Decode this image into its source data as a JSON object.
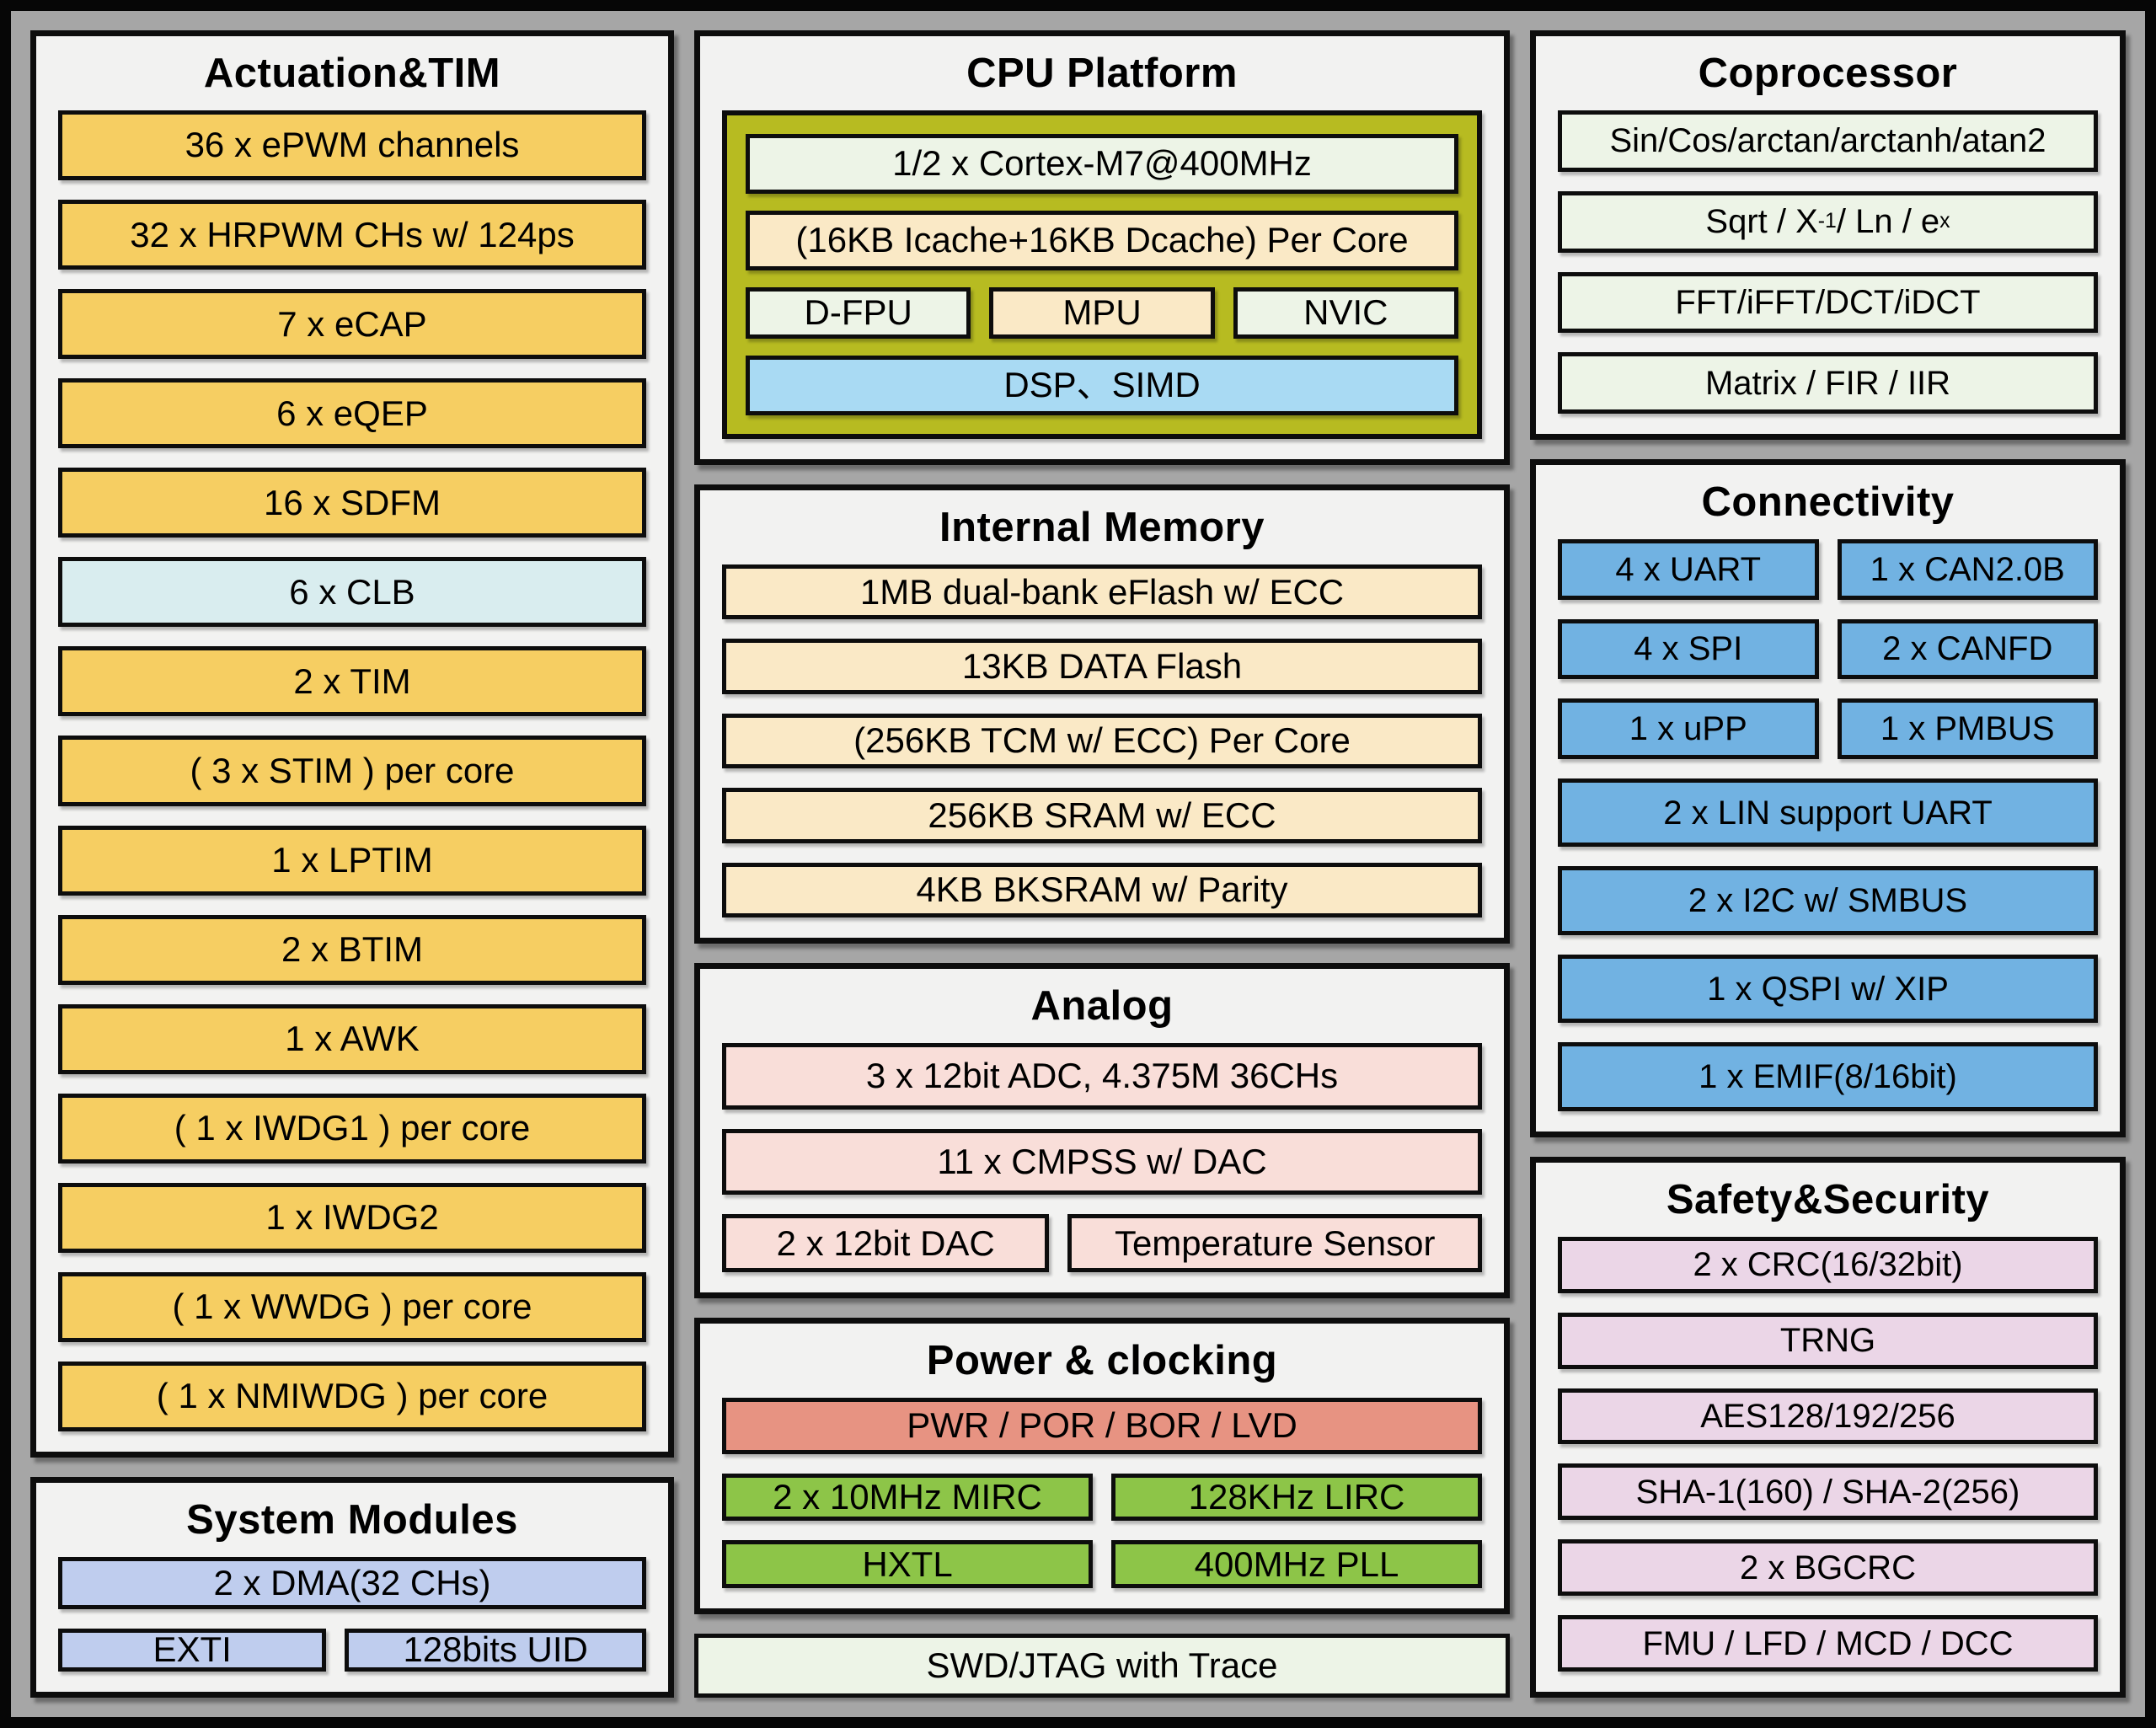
{
  "colors": {
    "yellow": "#f6ce62",
    "cyan": "#d9edef",
    "periwinkle": "#bfcdee",
    "olive": "#b7bb21",
    "paleGreen": "#edf4e7",
    "cream": "#fae9c6",
    "sky": "#a9daf3",
    "pink": "#f9ded9",
    "salmon": "#e79382",
    "green": "#8dc548",
    "blue": "#71b2e2",
    "lavender": "#ebd6e7",
    "panel_bg": "#f2f2f1",
    "canvas_bg": "#a6a6a6",
    "border": "#0d0d0d"
  },
  "left": {
    "actuation": {
      "title": "Actuation&TIM",
      "blocks": [
        {
          "label": "36 x ePWM channels",
          "color": "yellow"
        },
        {
          "label": "32 x HRPWM CHs w/ 124ps",
          "color": "yellow"
        },
        {
          "label": "7 x eCAP",
          "color": "yellow"
        },
        {
          "label": "6 x eQEP",
          "color": "yellow"
        },
        {
          "label": "16 x SDFM",
          "color": "yellow"
        },
        {
          "label": "6 x CLB",
          "color": "cyan"
        },
        {
          "label": "2 x TIM",
          "color": "yellow"
        },
        {
          "label": "( 3 x STIM ) per core",
          "color": "yellow"
        },
        {
          "label": "1 x LPTIM",
          "color": "yellow"
        },
        {
          "label": "2 x BTIM",
          "color": "yellow"
        },
        {
          "label": "1 x AWK",
          "color": "yellow"
        },
        {
          "label": "( 1 x IWDG1 ) per core",
          "color": "yellow"
        },
        {
          "label": "1 x IWDG2",
          "color": "yellow"
        },
        {
          "label": "( 1 x WWDG ) per core",
          "color": "yellow"
        },
        {
          "label": "( 1 x NMIWDG ) per core",
          "color": "yellow"
        }
      ]
    },
    "system_modules": {
      "title": "System Modules",
      "blocks": [
        {
          "label": "2 x DMA(32 CHs)",
          "color": "periwinkle"
        },
        {
          "cells": [
            {
              "label": "EXTI",
              "color": "periwinkle",
              "flex": 0.94
            },
            {
              "label": "128bits UID",
              "color": "periwinkle",
              "flex": 1.06
            }
          ]
        }
      ]
    }
  },
  "center": {
    "cpu": {
      "title": "CPU Platform",
      "container_color": "olive",
      "blocks": [
        {
          "label": "1/2 x Cortex-M7@400MHz",
          "color": "paleGreen"
        },
        {
          "label": "(16KB Icache+16KB Dcache) Per Core",
          "color": "cream"
        },
        {
          "cells": [
            {
              "label": "D-FPU",
              "color": "paleGreen"
            },
            {
              "label": "MPU",
              "color": "cream"
            },
            {
              "label": "NVIC",
              "color": "paleGreen"
            }
          ]
        },
        {
          "label": "DSP、SIMD",
          "color": "sky"
        }
      ]
    },
    "memory": {
      "title": "Internal Memory",
      "blocks": [
        {
          "label": "1MB dual-bank eFlash w/ ECC",
          "color": "cream"
        },
        {
          "label": "13KB DATA Flash",
          "color": "cream"
        },
        {
          "label": "(256KB TCM w/ ECC) Per Core",
          "color": "cream"
        },
        {
          "label": "256KB SRAM w/ ECC",
          "color": "cream"
        },
        {
          "label": "4KB BKSRAM w/ Parity",
          "color": "cream"
        }
      ]
    },
    "analog": {
      "title": "Analog",
      "blocks": [
        {
          "label": "3 x 12bit ADC, 4.375M 36CHs",
          "color": "pink"
        },
        {
          "label": "11 x CMPSS w/ DAC",
          "color": "pink"
        },
        {
          "cells": [
            {
              "label": "2 x 12bit DAC",
              "color": "pink",
              "flex": 0.88
            },
            {
              "label": "Temperature Sensor",
              "color": "pink",
              "flex": 1.12
            }
          ]
        }
      ]
    },
    "power": {
      "title": "Power & clocking",
      "blocks": [
        {
          "label": "PWR / POR / BOR / LVD",
          "color": "salmon"
        },
        {
          "cells": [
            {
              "label": "2 x 10MHz MIRC",
              "color": "green"
            },
            {
              "label": "128KHz LIRC",
              "color": "green"
            }
          ]
        },
        {
          "cells": [
            {
              "label": "HXTL",
              "color": "green"
            },
            {
              "label": "400MHz PLL",
              "color": "green"
            }
          ]
        }
      ]
    },
    "swd": {
      "label": "SWD/JTAG with Trace",
      "color": "paleGreen"
    }
  },
  "right": {
    "coprocessor": {
      "title": "Coprocessor",
      "blocks": [
        {
          "label": "Sin/Cos/arctan/arctanh/atan2",
          "color": "paleGreen"
        },
        {
          "parts": [
            {
              "t": "Sqrt / X"
            },
            {
              "t": "-1",
              "sup": true
            },
            {
              "t": " / Ln / e"
            },
            {
              "t": "x",
              "sup": true
            }
          ],
          "color": "paleGreen"
        },
        {
          "label": "FFT/iFFT/DCT/iDCT",
          "color": "paleGreen"
        },
        {
          "label": "Matrix / FIR / IIR",
          "color": "paleGreen"
        }
      ]
    },
    "connectivity": {
      "title": "Connectivity",
      "blocks": [
        {
          "cells": [
            {
              "label": "4 x UART",
              "color": "blue"
            },
            {
              "label": "1 x CAN2.0B",
              "color": "blue"
            }
          ]
        },
        {
          "cells": [
            {
              "label": "4 x SPI",
              "color": "blue"
            },
            {
              "label": "2 x CANFD",
              "color": "blue"
            }
          ]
        },
        {
          "cells": [
            {
              "label": "1 x uPP",
              "color": "blue"
            },
            {
              "label": "1 x PMBUS",
              "color": "blue"
            }
          ]
        },
        {
          "label": "2 x LIN support UART",
          "color": "blue"
        },
        {
          "label": "2 x I2C w/ SMBUS",
          "color": "blue"
        },
        {
          "label": "1 x QSPI w/ XIP",
          "color": "blue"
        },
        {
          "label": "1 x EMIF(8/16bit)",
          "color": "blue"
        }
      ]
    },
    "safety": {
      "title": "Safety&Security",
      "blocks": [
        {
          "label": "2 x CRC(16/32bit)",
          "color": "lavender"
        },
        {
          "label": "TRNG",
          "color": "lavender"
        },
        {
          "label": "AES128/192/256",
          "color": "lavender"
        },
        {
          "label": "SHA-1(160) / SHA-2(256)",
          "color": "lavender"
        },
        {
          "label": "2 x BGCRC",
          "color": "lavender"
        },
        {
          "label": "FMU / LFD / MCD / DCC",
          "color": "lavender"
        }
      ]
    }
  }
}
